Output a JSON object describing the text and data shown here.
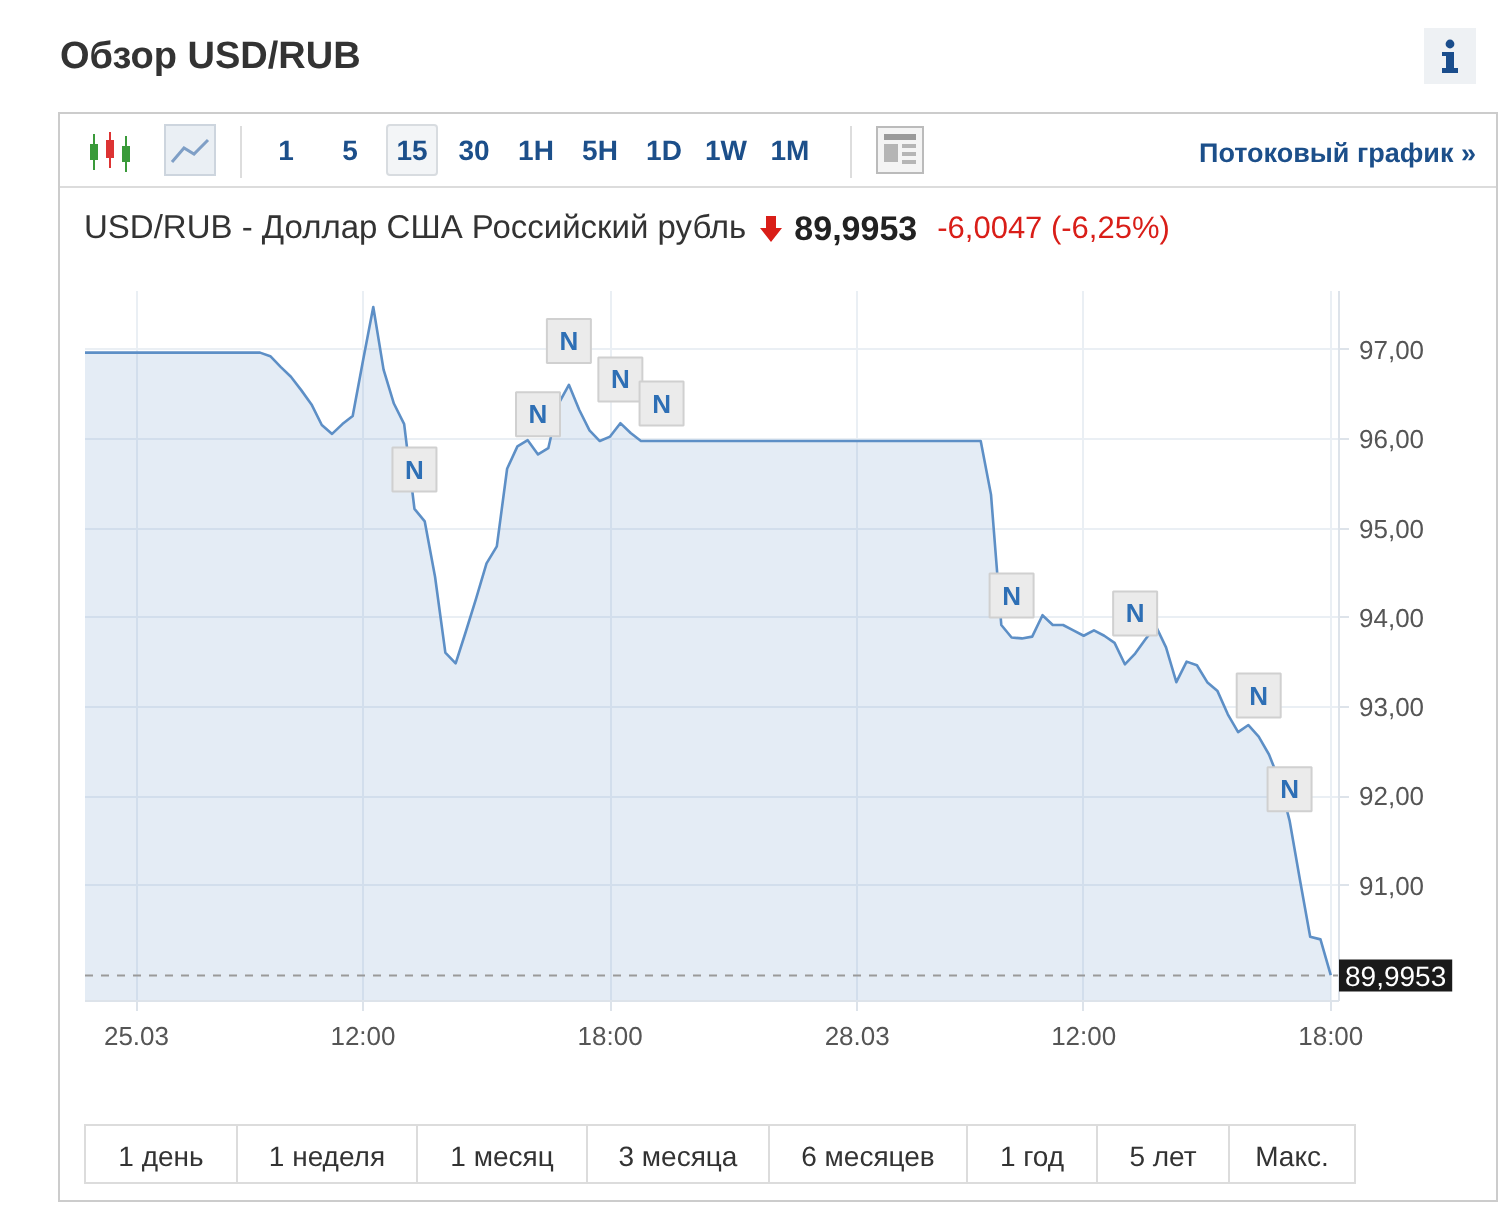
{
  "chart_data": {
    "type": "area",
    "title": "Обзор USD/RUB",
    "subtitle": "USD/RUB - Доллар США Российский рубль",
    "categories": [
      null,
      null,
      null,
      null,
      null,
      "25.03",
      null,
      null,
      null,
      null,
      null,
      null,
      null,
      null,
      null,
      null,
      null,
      null,
      null,
      null,
      null,
      null,
      null,
      null,
      null,
      null,
      null,
      "12:00",
      null,
      null,
      null,
      null,
      null,
      null,
      null,
      null,
      null,
      null,
      null,
      null,
      null,
      null,
      null,
      null,
      null,
      null,
      null,
      null,
      null,
      null,
      null,
      "18:00",
      null,
      null,
      null,
      null,
      null,
      null,
      null,
      null,
      null,
      null,
      null,
      null,
      null,
      null,
      null,
      null,
      null,
      null,
      null,
      null,
      null,
      null,
      null,
      "28.03",
      null,
      null,
      null,
      null,
      null,
      null,
      null,
      null,
      null,
      null,
      null,
      null,
      null,
      null,
      null,
      null,
      null,
      null,
      null,
      null,
      null,
      "12:00",
      null,
      null,
      null,
      null,
      null,
      null,
      null,
      null,
      null,
      null,
      null,
      null,
      null,
      null,
      null,
      null,
      null,
      null,
      null,
      null,
      null,
      null,
      null,
      "18:00"
    ],
    "series": [
      {
        "color": "#5d8fc6",
        "values": [
          96.97,
          96.97,
          96.97,
          96.97,
          96.97,
          96.97,
          96.97,
          96.97,
          96.97,
          96.97,
          96.97,
          96.97,
          96.97,
          96.97,
          96.97,
          96.97,
          96.97,
          96.97,
          96.93,
          96.81,
          96.7,
          96.55,
          96.39,
          96.16,
          96.06,
          96.17,
          96.26,
          96.88,
          97.48,
          96.78,
          96.4,
          96.17,
          95.22,
          95.08,
          94.46,
          93.61,
          93.49,
          93.85,
          94.22,
          94.61,
          94.8,
          95.67,
          95.92,
          95.99,
          95.83,
          95.9,
          96.4,
          96.61,
          96.33,
          96.1,
          95.98,
          96.03,
          96.18,
          96.07,
          95.98,
          95.98,
          95.98,
          95.98,
          95.98,
          95.98,
          95.98,
          95.98,
          95.98,
          95.98,
          95.98,
          95.98,
          95.98,
          95.98,
          95.98,
          95.98,
          95.98,
          95.98,
          95.98,
          95.98,
          95.98,
          95.98,
          95.98,
          95.98,
          95.98,
          95.98,
          95.98,
          95.98,
          95.98,
          95.98,
          95.98,
          95.98,
          95.98,
          95.98,
          95.38,
          93.92,
          93.78,
          93.77,
          93.79,
          94.03,
          93.92,
          93.92,
          93.86,
          93.8,
          93.86,
          93.8,
          93.72,
          93.48,
          93.6,
          93.76,
          93.91,
          93.67,
          93.28,
          93.51,
          93.47,
          93.28,
          93.18,
          92.92,
          92.72,
          92.8,
          92.67,
          92.47,
          92.18,
          91.73,
          91.07,
          90.43,
          90.4,
          90.0
        ]
      },
      {
        "type": "scatter",
        "color": "#ebebeb",
        "marker": "square",
        "values": [
          null,
          null,
          null,
          null,
          null,
          null,
          null,
          null,
          null,
          null,
          null,
          null,
          null,
          null,
          null,
          null,
          null,
          null,
          null,
          null,
          null,
          null,
          null,
          null,
          null,
          null,
          null,
          null,
          null,
          null,
          null,
          null,
          95.66,
          null,
          null,
          null,
          null,
          null,
          null,
          null,
          null,
          null,
          null,
          null,
          96.28,
          null,
          null,
          97.1,
          null,
          null,
          null,
          null,
          96.67,
          null,
          null,
          null,
          96.4,
          null,
          null,
          null,
          null,
          null,
          null,
          null,
          null,
          null,
          null,
          null,
          null,
          null,
          null,
          null,
          null,
          null,
          null,
          null,
          null,
          null,
          null,
          null,
          null,
          null,
          null,
          null,
          null,
          null,
          null,
          null,
          null,
          null,
          94.25,
          null,
          null,
          null,
          null,
          null,
          null,
          null,
          null,
          null,
          null,
          null,
          94.05,
          null,
          null,
          null,
          null,
          null,
          null,
          null,
          null,
          null,
          null,
          null,
          93.13,
          null,
          null,
          92.08,
          null,
          null,
          null,
          null
        ],
        "value_labels": [
          null,
          null,
          null,
          null,
          null,
          null,
          null,
          null,
          null,
          null,
          null,
          null,
          null,
          null,
          null,
          null,
          null,
          null,
          null,
          null,
          null,
          null,
          null,
          null,
          null,
          null,
          null,
          null,
          null,
          null,
          null,
          null,
          "N",
          null,
          null,
          null,
          null,
          null,
          null,
          null,
          null,
          null,
          null,
          null,
          "N",
          null,
          null,
          "N",
          null,
          null,
          null,
          null,
          "N",
          null,
          null,
          null,
          "N",
          null,
          null,
          null,
          null,
          null,
          null,
          null,
          null,
          null,
          null,
          null,
          null,
          null,
          null,
          null,
          null,
          null,
          null,
          null,
          null,
          null,
          null,
          null,
          null,
          null,
          null,
          null,
          null,
          null,
          null,
          null,
          null,
          null,
          "N",
          null,
          null,
          null,
          null,
          null,
          null,
          null,
          null,
          null,
          null,
          null,
          "N",
          null,
          null,
          null,
          null,
          null,
          null,
          null,
          null,
          null,
          null,
          null,
          "N",
          null,
          null,
          "N",
          null,
          null,
          null,
          null
        ]
      }
    ],
    "ylim": [
      89.71,
      97.66
    ],
    "yticks": [
      {
        "value": 91,
        "label": "91,00"
      },
      {
        "value": 92,
        "label": "92,00"
      },
      {
        "value": 93,
        "label": "93,00"
      },
      {
        "value": 94,
        "label": "94,00"
      },
      {
        "value": 95,
        "label": "95,00"
      },
      {
        "value": 96,
        "label": "96,00"
      },
      {
        "value": 97,
        "label": "97,00"
      }
    ],
    "grid": true,
    "ref_lines": [
      {
        "axis": "y",
        "value": 89.9953,
        "label": "89,9953",
        "color": "#9a9a9a",
        "line_style": "dashed"
      }
    ],
    "annotations": [
      "1",
      "5",
      "15",
      "30",
      "1H",
      "5H",
      "1D",
      "1W",
      "1M",
      "Потоковый график »",
      "89,9953",
      "-6,0047 (-6,25%)",
      "1 день",
      "1 неделя",
      "1 месяц",
      "3 месяца",
      "6 месяцев",
      "1 год",
      "5 лет",
      "Макс."
    ]
  }
}
